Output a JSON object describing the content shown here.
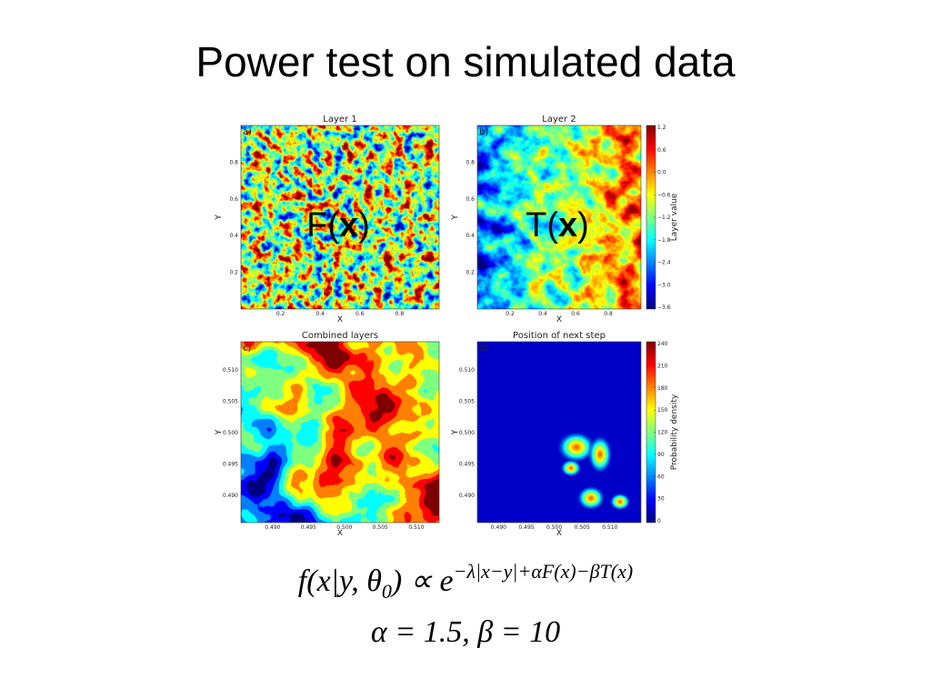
{
  "title": "Power test on simulated data",
  "panels": [
    {
      "title": "Layer 1",
      "tag": "a)",
      "xlabel": "X",
      "ylabel": "Y",
      "xticks": [
        "0.2",
        "0.4",
        "0.6",
        "0.8"
      ],
      "yticks": [
        "0.8",
        "0.6",
        "0.4",
        "0.2"
      ],
      "overlay": [
        "F(",
        "x",
        ")"
      ]
    },
    {
      "title": "Layer 2",
      "tag": "b)",
      "xlabel": "X",
      "ylabel": "Y",
      "xticks": [
        "0.2",
        "0.4",
        "0.6",
        "0.8"
      ],
      "yticks": [
        "0.8",
        "0.6",
        "0.4",
        "0.2"
      ],
      "overlay": [
        "T(",
        "x",
        ")"
      ],
      "colorbar": {
        "label": "Layer value",
        "ticks": [
          "1.2",
          "0.6",
          "0.0",
          "−0.6",
          "−1.2",
          "−1.8",
          "−2.4",
          "−3.0",
          "−3.6"
        ]
      }
    },
    {
      "title": "Combined layers",
      "tag": "c)",
      "xlabel": "X",
      "ylabel": "Y",
      "xticks": [
        "0.490",
        "0.495",
        "0.500",
        "0.505",
        "0.510"
      ],
      "yticks": [
        "0.510",
        "0.505",
        "0.500",
        "0.495",
        "0.490"
      ]
    },
    {
      "title": "Position of next step",
      "tag": "d)",
      "xlabel": "X",
      "ylabel": "Y",
      "xticks": [
        "0.490",
        "0.495",
        "0.500",
        "0.505",
        "0.510"
      ],
      "yticks": [
        "0.510",
        "0.505",
        "0.500",
        "0.495",
        "0.490"
      ],
      "colorbar": {
        "label": "Probability density",
        "ticks": [
          "240",
          "210",
          "180",
          "150",
          "120",
          "90",
          "60",
          "30",
          "0"
        ]
      }
    }
  ],
  "formula": {
    "lhs": "f(x|y, θ",
    "sub": "0",
    "mid": ") ∝ e",
    "sup": "−λ|x−y|+αF(x)−βT(x)"
  },
  "params": "α = 1.5, β = 10"
}
